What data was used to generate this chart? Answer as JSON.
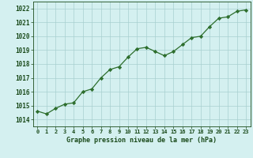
{
  "x": [
    0,
    1,
    2,
    3,
    4,
    5,
    6,
    7,
    8,
    9,
    10,
    11,
    12,
    13,
    14,
    15,
    16,
    17,
    18,
    19,
    20,
    21,
    22,
    23
  ],
  "y": [
    1014.6,
    1014.4,
    1014.8,
    1015.1,
    1015.2,
    1016.0,
    1016.2,
    1017.0,
    1017.6,
    1017.8,
    1018.5,
    1019.1,
    1019.2,
    1018.9,
    1018.6,
    1018.9,
    1019.4,
    1019.9,
    1020.0,
    1020.7,
    1021.3,
    1021.4,
    1021.8,
    1021.9
  ],
  "line_color": "#2d6e2d",
  "marker_color": "#2d6e2d",
  "bg_color": "#d4f0f0",
  "grid_color": "#a8d0d0",
  "xlabel": "Graphe pression niveau de la mer (hPa)",
  "xlabel_color": "#1a4a1a",
  "tick_color": "#1a4a1a",
  "ylim_min": 1013.5,
  "ylim_max": 1022.5,
  "xlim_min": -0.5,
  "xlim_max": 23.5,
  "yticks": [
    1014,
    1015,
    1016,
    1017,
    1018,
    1019,
    1020,
    1021,
    1022
  ],
  "xticks": [
    0,
    1,
    2,
    3,
    4,
    5,
    6,
    7,
    8,
    9,
    10,
    11,
    12,
    13,
    14,
    15,
    16,
    17,
    18,
    19,
    20,
    21,
    22,
    23
  ]
}
